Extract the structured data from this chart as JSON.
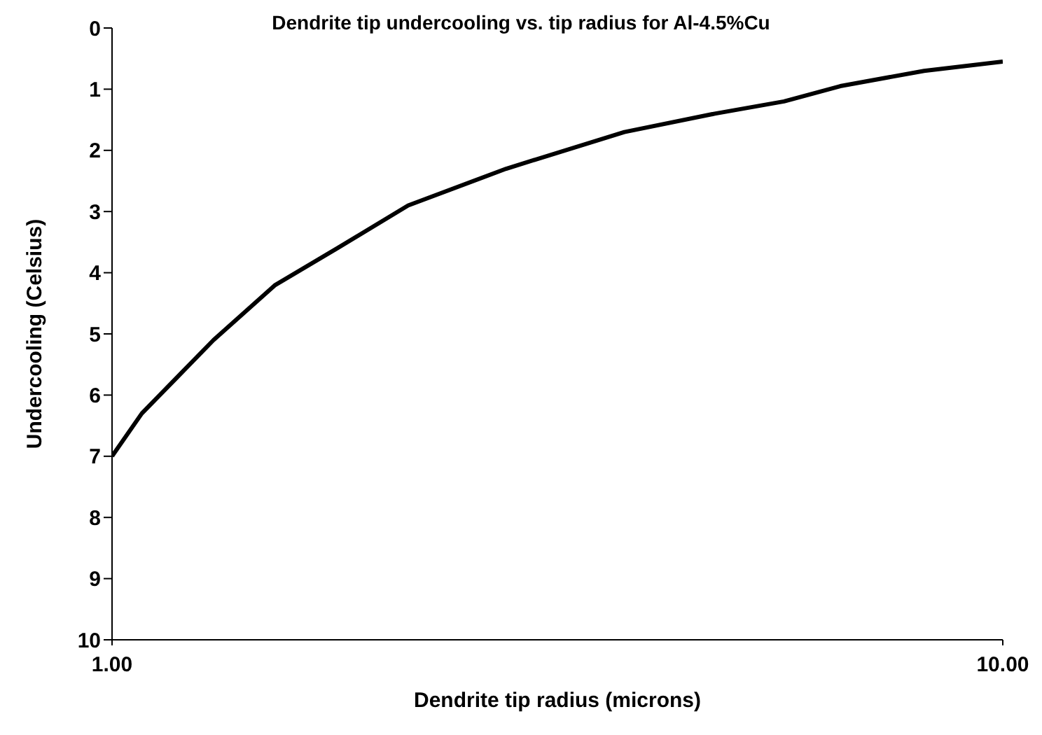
{
  "chart_data": {
    "type": "line",
    "title": "Dendrite tip undercooling vs. tip radius for Al-4.5%Cu",
    "xlabel": "Dendrite tip radius (microns)",
    "ylabel": "Undercooling (Celsius)",
    "x": [
      1,
      1.08,
      1.3,
      1.525,
      1.79,
      2.15,
      2.77,
      3.76,
      4.75,
      5.68,
      6.57,
      8.16,
      10
    ],
    "series": [
      {
        "color": "#000000",
        "values": [
          7.0,
          6.3,
          5.1,
          4.2,
          3.6,
          2.9,
          2.3,
          1.7,
          1.4,
          1.2,
          0.95,
          0.7,
          0.55
        ]
      }
    ],
    "log": "x",
    "xlim": [
      1,
      10
    ],
    "xticks": [
      {
        "value": 1,
        "label": "1.00"
      },
      {
        "value": 10,
        "label": "10.00"
      }
    ],
    "ylim": [
      10,
      0
    ],
    "yticks": [
      0,
      1,
      2,
      3,
      4,
      5,
      6,
      7,
      8,
      9,
      10
    ]
  }
}
